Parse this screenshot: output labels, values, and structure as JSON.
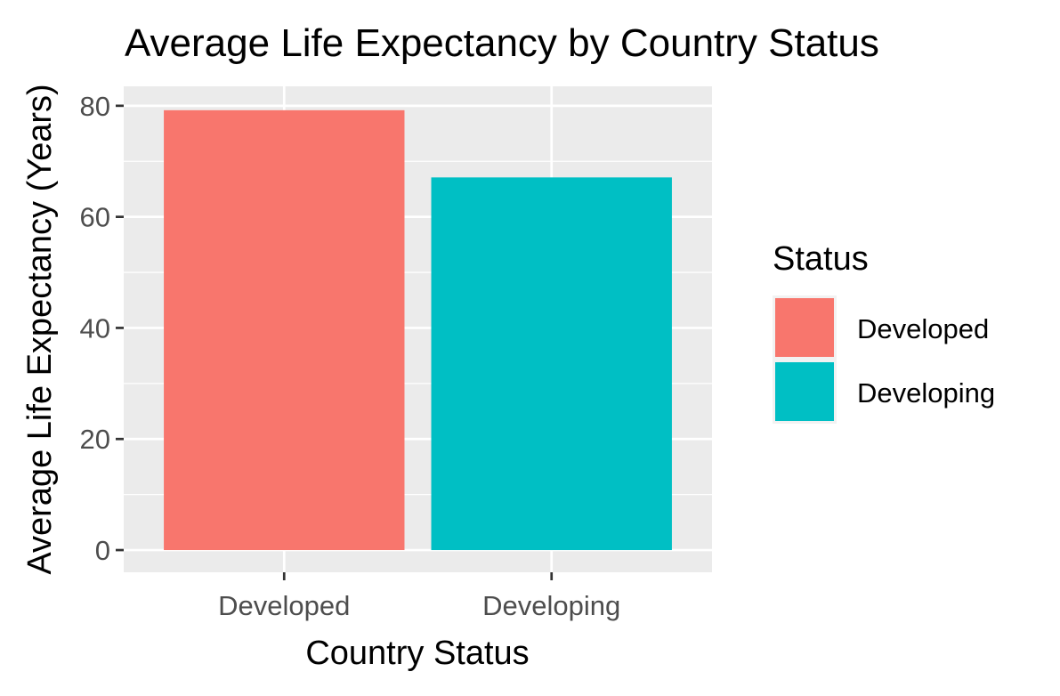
{
  "chart_data": {
    "type": "bar",
    "title": "Average Life Expectancy by Country Status",
    "xlabel": "Country Status",
    "ylabel": "Average Life Expectancy (Years)",
    "categories": [
      "Developed",
      "Developing"
    ],
    "values": [
      79.2,
      67.1
    ],
    "ylim": [
      -4,
      83.5
    ],
    "y_ticks": [
      0,
      20,
      40,
      60,
      80
    ],
    "y_minor_ticks": [
      10,
      30,
      50,
      70
    ],
    "colors": [
      "#F8766D",
      "#00BFC4"
    ],
    "panel_background": "#EBEBEB",
    "grid": true,
    "legend": {
      "title": "Status",
      "position": "right",
      "items": [
        "Developed",
        "Developing"
      ]
    }
  }
}
